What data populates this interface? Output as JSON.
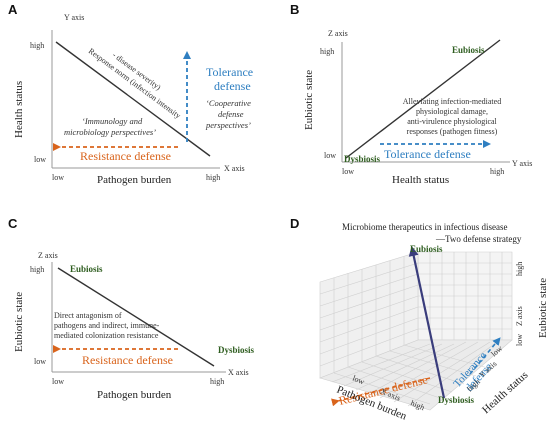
{
  "colors": {
    "resistance": "#d9641c",
    "tolerance": "#2f7fc1",
    "line": "#333333",
    "green_label": "#2e5d1f",
    "navy_arrow": "#3a3d7c"
  },
  "panelA": {
    "letter": "A",
    "y_axis": "Y axis",
    "x_axis": "X axis",
    "high_y": "high",
    "low_y": "low",
    "low_x": "low",
    "high_x": "high",
    "ylabel": "Health status",
    "xlabel": "Pathogen burden",
    "norm_line1": "Response norm (infection intensity",
    "norm_line2": "- disease severity)",
    "immunology1": "‘Immunology and",
    "immunology2": "microbiology perspectives’",
    "resistance": "Resistance defense",
    "tolerance1": "Tolerance",
    "tolerance2": "defense",
    "coop1": "‘Cooperative",
    "coop2": "defense",
    "coop3": "perspectives’"
  },
  "panelB": {
    "letter": "B",
    "z_axis": "Z axis",
    "y_axis": "Y axis",
    "high_z": "high",
    "low_z": "low",
    "low_y": "low",
    "high_y": "high",
    "ylabel": "Eubiotic state",
    "xlabel": "Health status",
    "eubiosis": "Eubiosis",
    "dysbiosis": "Dysbiosis",
    "note1": "Alleviating infection-mediated",
    "note2": "physiological damage,",
    "note3": "anti-virulence physiological",
    "note4": "responses (pathogen fitness)",
    "tolerance": "Tolerance defense"
  },
  "panelC": {
    "letter": "C",
    "z_axis": "Z axis",
    "x_axis": "X axis",
    "high_z": "high",
    "low_z": "low",
    "low_x": "low",
    "high_x": "high",
    "ylabel": "Eubiotic state",
    "xlabel": "Pathogen burden",
    "eubiosis": "Eubiosis",
    "dysbiosis": "Dysbiosis",
    "note1": "Direct antagonism of",
    "note2": "pathogens and indirect, immune-",
    "note3": "mediated colonization resistance",
    "resistance": "Resistance defense"
  },
  "panelD": {
    "letter": "D",
    "title1": "Microbiome therapeutics in infectious disease",
    "title2": "—Two defense strategy",
    "eubiosis": "Eubiosis",
    "dysbiosis": "Dysbiosis",
    "resistance": "Resistance defense",
    "tolerance1": "Tolerance",
    "tolerance2": "defense",
    "high_z": "high",
    "z_axis": "Z axis",
    "low_z": "low",
    "zlabel": "Eubiotic state",
    "low_x": "low",
    "x_axis": "X axis",
    "high_x": "high",
    "xlabel": "Pathogen burden",
    "low_y": "low",
    "y_axis": "Y axis",
    "high_y": "high",
    "ylabel": "Health status"
  }
}
